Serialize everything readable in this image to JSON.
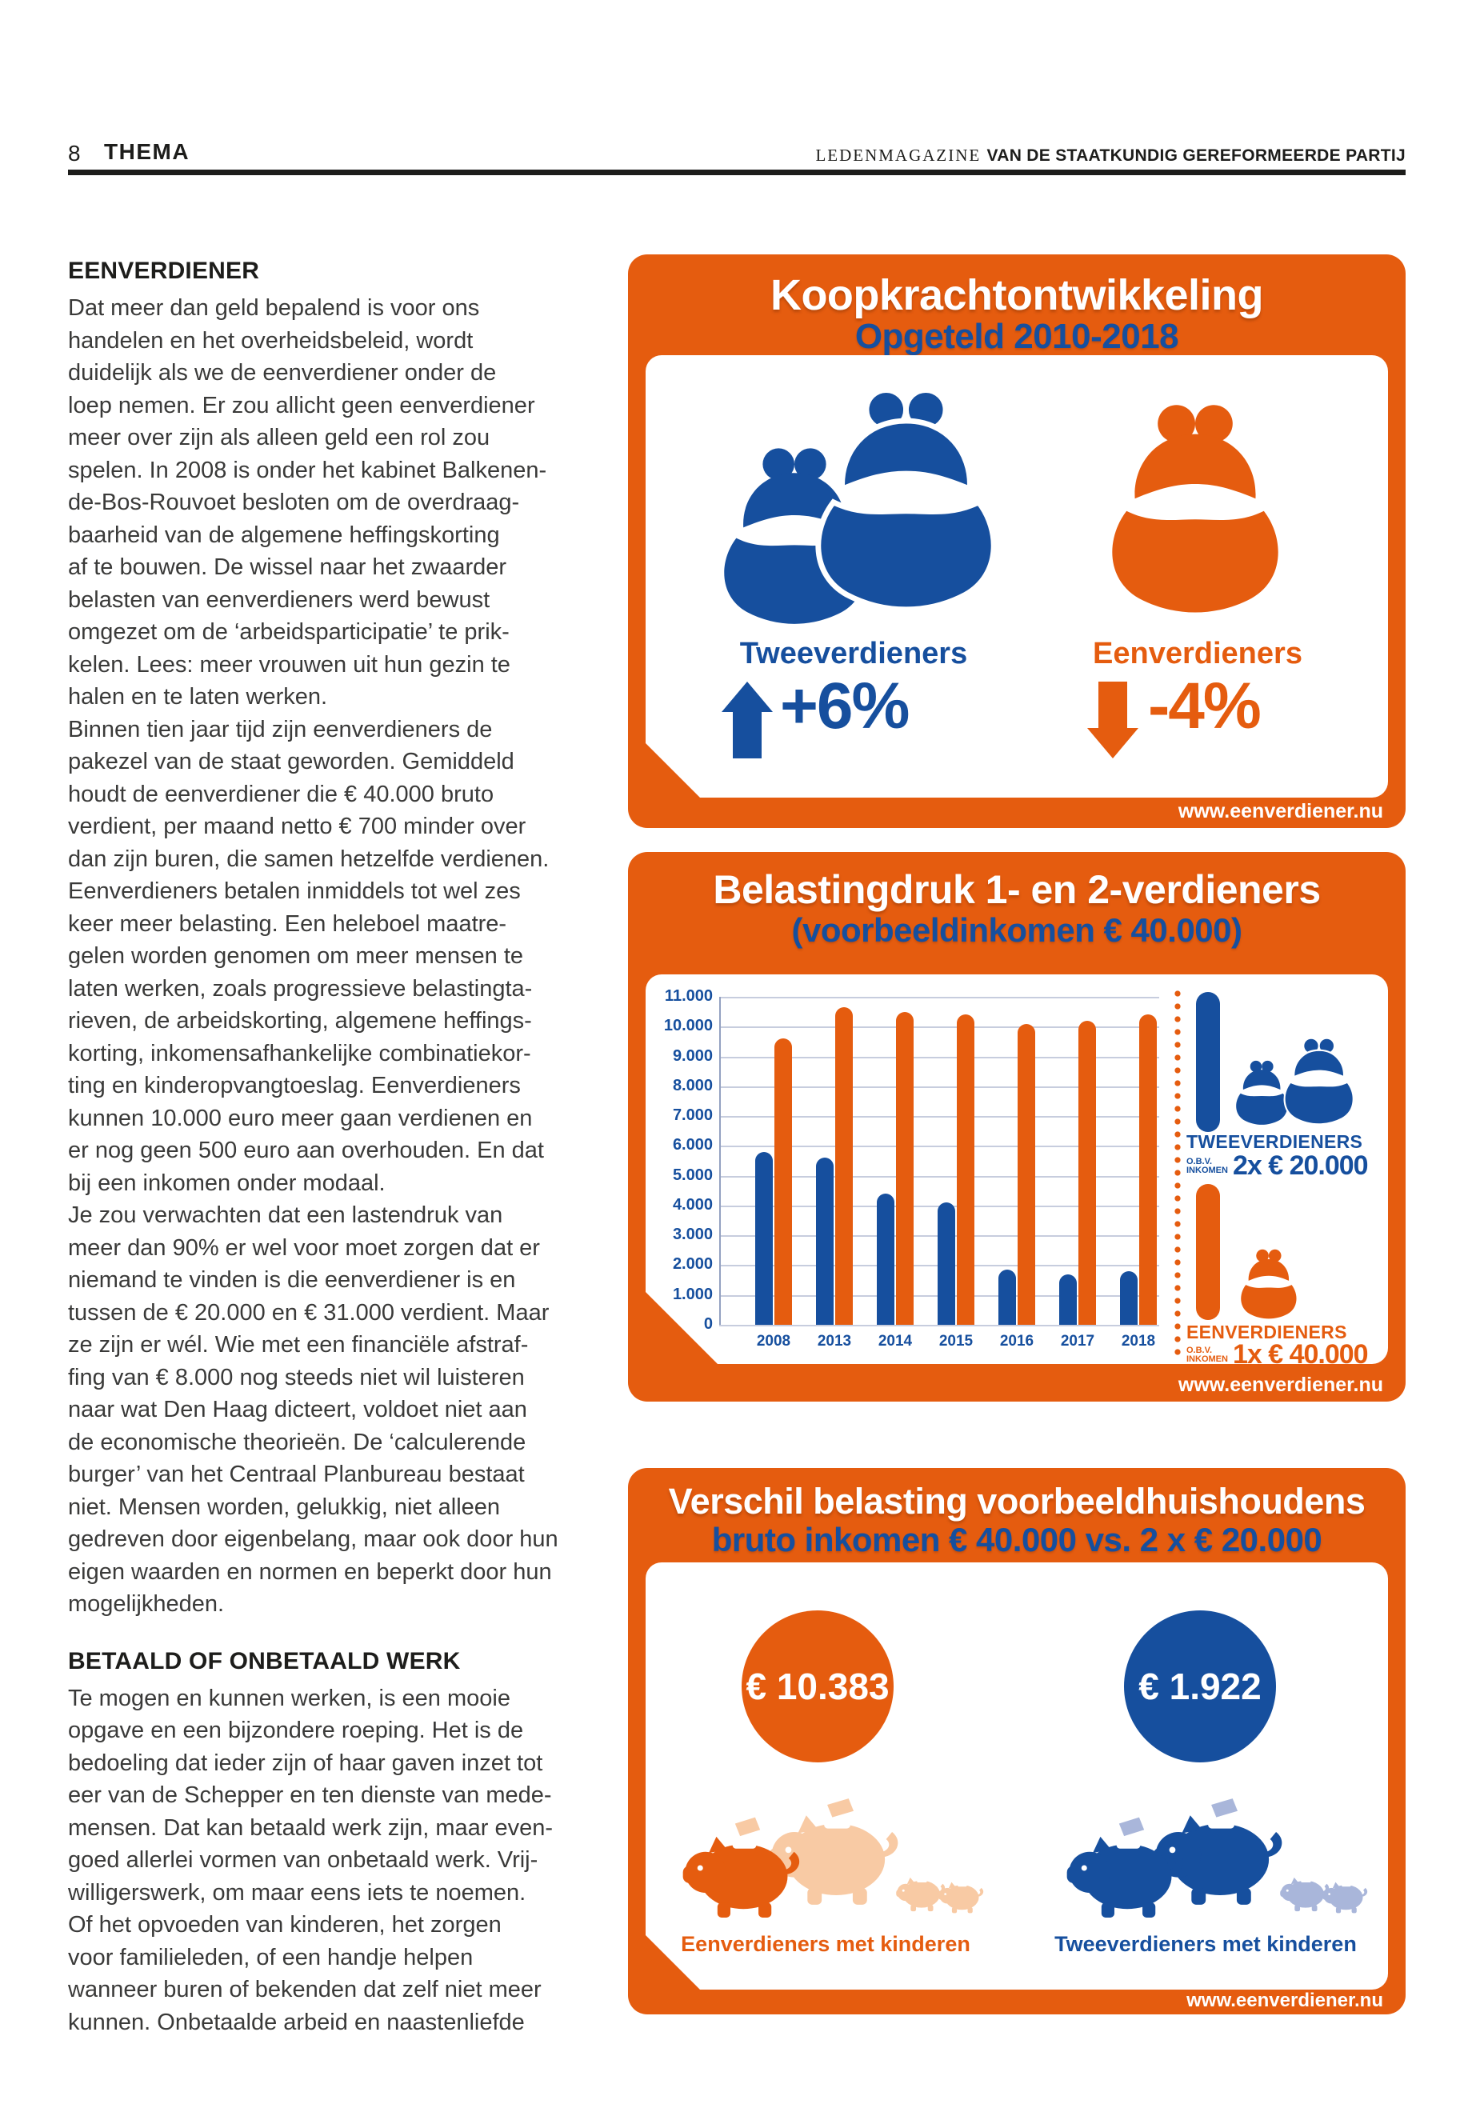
{
  "colors": {
    "orange": "#E55C0F",
    "blue": "#164F9E",
    "pale_orange": "#F8CAA4",
    "pale_blue": "#A9B6DA"
  },
  "header": {
    "page_number": "8",
    "section": "THEMA",
    "credit_light": "LEDENMAGAZINE ",
    "credit_bold": "VAN DE STAATKUNDIG GEREFORMEERDE PARTIJ"
  },
  "article": {
    "heading1": "EENVERDIENER",
    "para1": "Dat meer dan geld bepalend is voor ons\nhandelen en het overheidsbeleid, wordt\nduidelijk als we de eenverdiener onder de\nloep nemen. Er zou allicht geen eenverdiener\nmeer over zijn als alleen geld een rol zou\nspelen. In 2008 is onder het kabinet Balkenen-\nde-Bos-Rouvoet besloten om de overdraag-\nbaarheid van de algemene heffingskorting\naf te bouwen. De wissel naar het zwaarder\nbelasten van eenverdieners werd bewust\nomgezet om de ‘arbeidsparticipatie’ te prik-\nkelen. Lees: meer vrouwen uit hun gezin te\nhalen en te laten werken.\nBinnen tien jaar tijd zijn eenverdieners de\npakezel van de staat geworden. Gemiddeld\nhoudt de eenverdiener die € 40.000 bruto\nverdient, per maand netto € 700 minder over\ndan zijn buren, die samen hetzelfde verdienen.\nEenverdieners betalen inmiddels tot wel zes\nkeer meer belasting. Een heleboel maatre-\ngelen worden genomen om meer mensen te\nlaten werken, zoals progressieve belastingta-\nrieven, de arbeidskorting, algemene heffings-\nkorting, inkomensafhankelijke combinatiekor-\nting en kinderopvangtoeslag. Eenverdieners\nkunnen 10.000 euro meer gaan verdienen en\ner nog geen 500 euro aan overhouden. En dat\nbij een inkomen onder modaal.\nJe zou verwachten dat een lastendruk van\nmeer dan 90% er wel voor moet zorgen dat er\nniemand te vinden is die eenverdiener is en\ntussen de € 20.000 en € 31.000 verdient. Maar\nze zijn er wél. Wie met een financiële afstraf-\nfing van € 8.000 nog steeds niet wil luisteren\nnaar wat Den Haag dicteert, voldoet niet aan\nde economische theorieën. De ‘calculerende\nburger’ van het Centraal Planbureau bestaat\nniet. Mensen worden, gelukkig, niet alleen\ngedreven door eigenbelang, maar ook door hun\neigen waarden en normen en beperkt door hun\nmogelijkheden.",
    "heading2": "BETAALD OF ONBETAALD WERK",
    "para2": "Te mogen en kunnen werken, is een mooie\nopgave en een bijzondere roeping. Het is de\nbedoeling dat ieder zijn of haar gaven inzet tot\neer van de Schepper en ten dienste van mede-\nmensen. Dat kan betaald werk zijn, maar even-\ngoed allerlei vormen van onbetaald werk. Vrij-\nwilligerswerk, om maar eens iets te noemen.\nOf het opvoeden van kinderen, het zorgen\nvoor familieleden, of een handje helpen\nwanneer buren of bekenden dat zelf niet meer\nkunnen. Onbetaalde arbeid en naastenliefde"
  },
  "infographic1": {
    "title": "Koopkrachtontwikkeling",
    "subtitle": "Opgeteld 2010-2018",
    "left_label": "Tweeverdieners",
    "right_label": "Eenverdieners",
    "left_value": "+6%",
    "right_value": "-4%",
    "website": "www.eenverdiener.nu"
  },
  "infographic2": {
    "title": "Belastingdruk 1- en 2-verdieners",
    "subtitle": "(voorbeeldinkomen € 40.000)",
    "website": "www.eenverdiener.nu",
    "legend": {
      "two_label": "TWEEVERDIENERS",
      "two_prefix": "O.B.V.\nINKOMEN",
      "two_value": "2x € 20.000",
      "one_label": "EENVERDIENERS",
      "one_prefix": "O.B.V.\nINKOMEN",
      "one_value": "1x € 40.000"
    }
  },
  "chart_data": {
    "type": "bar",
    "title": "Belastingdruk 1- en 2-verdieners",
    "subtitle": "(voorbeeldinkomen € 40.000)",
    "categories": [
      "2008",
      "2013",
      "2014",
      "2015",
      "2016",
      "2017",
      "2018"
    ],
    "series": [
      {
        "name": "Tweeverdieners (2x € 20.000)",
        "color_key": "blue",
        "values": [
          5800,
          5600,
          4400,
          4100,
          1850,
          1700,
          1800
        ]
      },
      {
        "name": "Eenverdieners (1x € 40.000)",
        "color_key": "orange",
        "values": [
          9600,
          10650,
          10500,
          10400,
          10100,
          10200,
          10400
        ]
      }
    ],
    "ylim": [
      0,
      11000
    ],
    "ytick_step": 1000,
    "grid": true,
    "legend_position": "right"
  },
  "infographic3": {
    "title": "Verschil belasting voorbeeldhuishoudens",
    "subtitle": "bruto inkomen € 40.000 vs. 2 x € 20.000",
    "left_amount": "€ 10.383",
    "right_amount": "€ 1.922",
    "left_label": "Eenverdieners met kinderen",
    "right_label": "Tweeverdieners met kinderen",
    "website": "www.eenverdiener.nu"
  }
}
